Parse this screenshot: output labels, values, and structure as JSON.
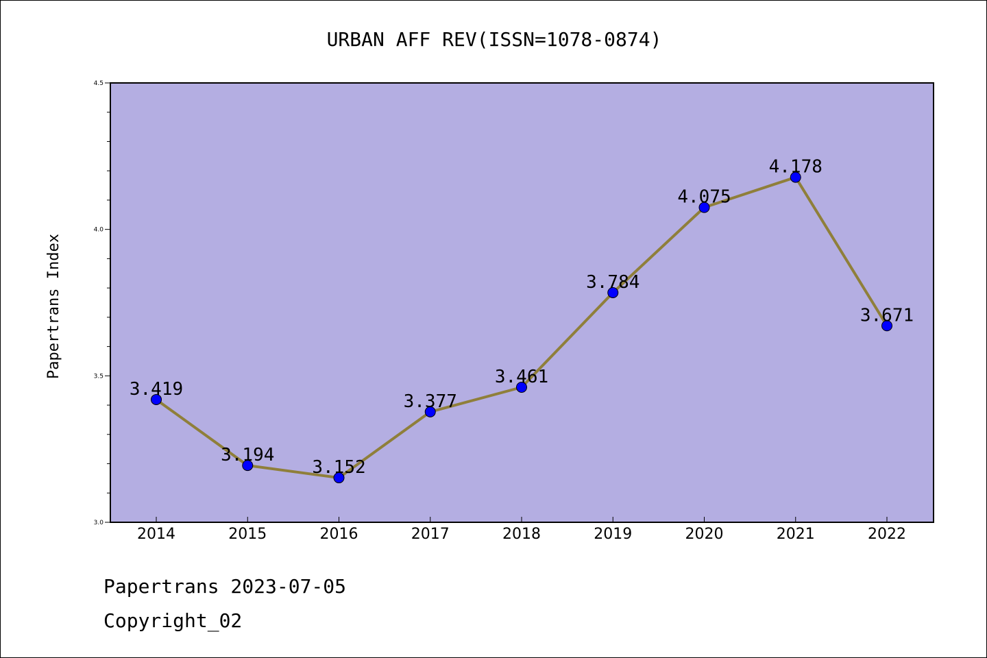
{
  "chart_data": {
    "type": "line",
    "title": "URBAN AFF REV(ISSN=1078-0874)",
    "xlabel": "",
    "ylabel": "Papertrans Index",
    "categories": [
      "2014",
      "2015",
      "2016",
      "2017",
      "2018",
      "2019",
      "2020",
      "2021",
      "2022"
    ],
    "series": [
      {
        "values": [
          3.419,
          3.194,
          3.152,
          3.377,
          3.461,
          3.784,
          4.075,
          4.178,
          3.671
        ],
        "data_labels": [
          "3.419",
          "3.194",
          "3.152",
          "3.377",
          "3.461",
          "3.784",
          "4.075",
          "4.178",
          "3.671"
        ]
      }
    ],
    "ylim": [
      3.0,
      4.5
    ],
    "yticks": [
      "3.0",
      "3.5",
      "4.0",
      "4.5"
    ],
    "grid": false,
    "colors": {
      "plot_background": "#b4aee2",
      "line": "#8f7f3a",
      "marker": "#0000ff"
    }
  },
  "footer": {
    "line1": "Papertrans 2023-07-05",
    "line2": "Copyright_02"
  }
}
